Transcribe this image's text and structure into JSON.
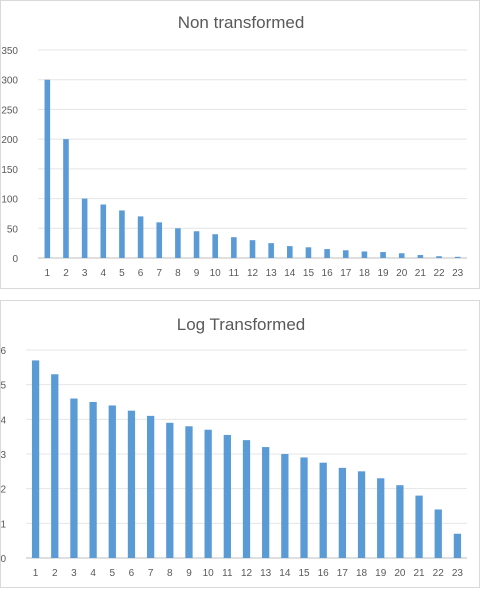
{
  "chart_data": [
    {
      "type": "bar",
      "title": "Non transformed",
      "categories": [
        "1",
        "2",
        "3",
        "4",
        "5",
        "6",
        "7",
        "8",
        "9",
        "10",
        "11",
        "12",
        "13",
        "14",
        "15",
        "16",
        "17",
        "18",
        "19",
        "20",
        "21",
        "22",
        "23"
      ],
      "series": [
        {
          "values": [
            300,
            200,
            100,
            90,
            80,
            70,
            60,
            50,
            45,
            40,
            35,
            30,
            25,
            20,
            18,
            15,
            13,
            11,
            10,
            8,
            5,
            3,
            2
          ]
        }
      ],
      "yticks": [
        "0",
        "50",
        "100",
        "150",
        "200",
        "250",
        "300",
        "350"
      ],
      "ylim": [
        0,
        350
      ],
      "grid": true,
      "color": "#5b9bd5"
    },
    {
      "type": "bar",
      "title": "Log Transformed",
      "categories": [
        "1",
        "2",
        "3",
        "4",
        "5",
        "6",
        "7",
        "8",
        "9",
        "10",
        "11",
        "12",
        "13",
        "14",
        "15",
        "16",
        "17",
        "18",
        "19",
        "20",
        "21",
        "22",
        "23"
      ],
      "series": [
        {
          "values": [
            5.7,
            5.3,
            4.6,
            4.5,
            4.4,
            4.25,
            4.1,
            3.9,
            3.8,
            3.7,
            3.55,
            3.4,
            3.2,
            3.0,
            2.9,
            2.75,
            2.6,
            2.5,
            2.3,
            2.1,
            1.8,
            1.4,
            0.7
          ]
        }
      ],
      "yticks": [
        "0",
        "1",
        "2",
        "3",
        "4",
        "5",
        "6"
      ],
      "ylim": [
        0,
        6
      ],
      "grid": true,
      "color": "#5b9bd5"
    }
  ]
}
